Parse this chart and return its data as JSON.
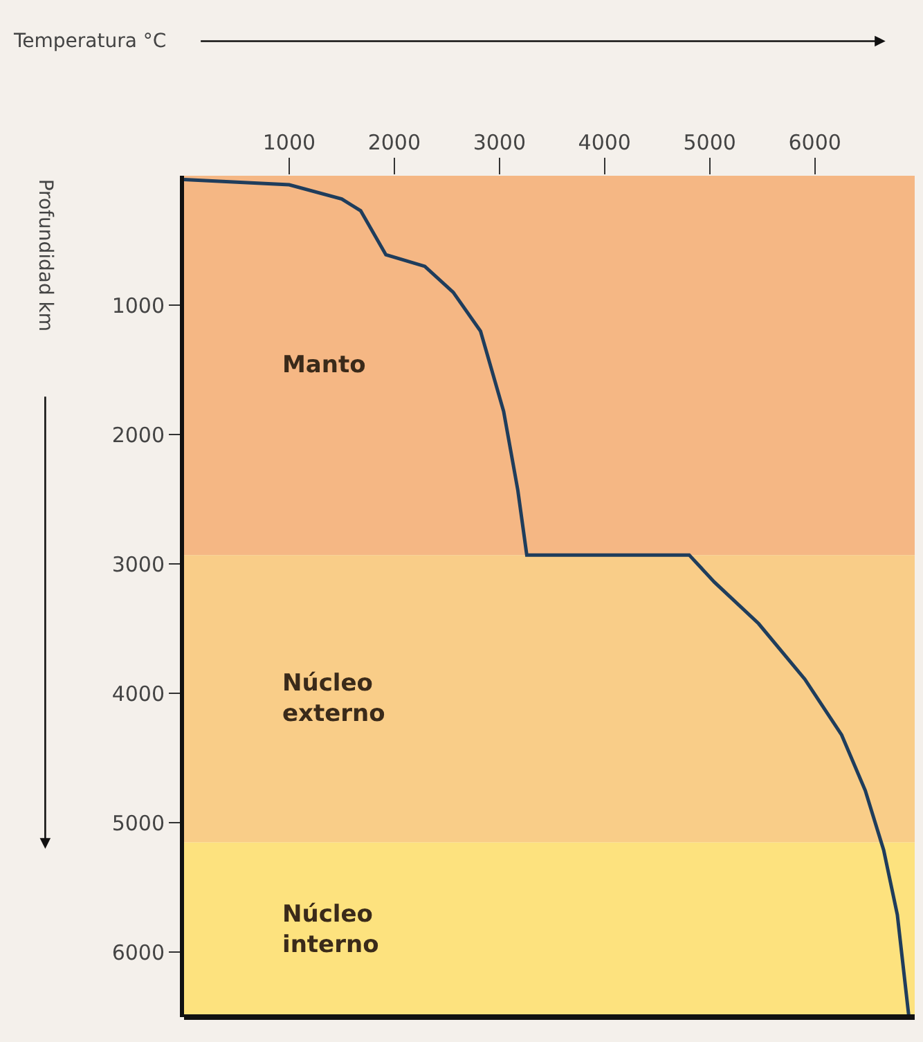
{
  "chart_data": {
    "type": "line",
    "xlabel": "Temperatura °C",
    "ylabel": "Profundidad km",
    "xlim": [
      0,
      6950
    ],
    "xticks": [
      1000,
      2000,
      3000,
      4000,
      5000,
      6000
    ],
    "ylim": [
      6500,
      0
    ],
    "yticks": [
      1000,
      2000,
      3000,
      4000,
      5000,
      6000
    ],
    "marker": "none",
    "line_style": "solid",
    "series": [
      {
        "color": "#1f3d5c",
        "x": [
          0,
          1000,
          1500,
          1680,
          1920,
          2290,
          2560,
          2820,
          3040,
          3175,
          3260,
          4805,
          5045,
          5465,
          5905,
          6255,
          6480,
          6655,
          6785,
          6895
        ],
        "values": [
          30,
          70,
          180,
          270,
          610,
          700,
          900,
          1200,
          1820,
          2430,
          2930,
          2930,
          3140,
          3460,
          3890,
          4320,
          4750,
          5210,
          5710,
          6500
        ]
      }
    ],
    "bands": [
      {
        "axis": "y",
        "from": 0,
        "to": 2930,
        "label": "Manto",
        "color": "#f5b784"
      },
      {
        "axis": "y",
        "from": 2930,
        "to": 5150,
        "label": "Núcleo\nexterno",
        "color": "#f9cd88"
      },
      {
        "axis": "y",
        "from": 5150,
        "to": 6500,
        "label": "Núcleo\ninterno",
        "color": "#fde27e"
      }
    ]
  }
}
